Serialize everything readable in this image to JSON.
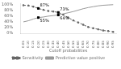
{
  "chart_data": {
    "type": "line",
    "x": [
      0.05,
      0.1,
      0.15,
      0.2,
      0.25,
      0.3,
      0.35,
      0.4,
      0.45,
      0.5,
      0.55,
      0.6,
      0.65,
      0.7,
      0.75,
      0.8,
      0.85,
      0.9,
      0.95
    ],
    "series": [
      {
        "name": "Sensitivity",
        "color": "#666666",
        "line_style": "dashed",
        "marker": "square",
        "values": [
          0.98,
          0.97,
          0.93,
          0.87,
          0.82,
          0.78,
          0.76,
          0.73,
          0.65,
          0.55,
          0.45,
          0.38,
          0.3,
          0.22,
          0.18,
          0.14,
          0.1,
          0.08,
          0.05
        ]
      },
      {
        "name": "Predictive value positive",
        "color": "#999999",
        "line_style": "solid",
        "marker": "none",
        "values": [
          0.4,
          0.44,
          0.5,
          0.55,
          0.57,
          0.6,
          0.62,
          0.64,
          0.68,
          0.72,
          0.76,
          0.81,
          0.86,
          0.9,
          0.93,
          0.96,
          0.98,
          0.99,
          1.0
        ]
      }
    ],
    "xlabel": "Cutoff probabilities",
    "xlim": [
      0.02,
      0.98
    ],
    "xticks": [
      0.05,
      {
        "value": 0.1,
        "label": "0.10"
      },
      0.15,
      {
        "value": 0.2,
        "label": "0.20"
      },
      0.25,
      {
        "value": 0.3,
        "label": "0.30"
      },
      0.35,
      {
        "value": 0.4,
        "label": "0.40"
      },
      0.45,
      {
        "value": 0.5,
        "label": "0.50"
      },
      0.55,
      {
        "value": 0.6,
        "label": "0.60"
      },
      0.65,
      {
        "value": 0.7,
        "label": "0.70"
      },
      0.75,
      {
        "value": 0.8,
        "label": "0.80"
      },
      0.85,
      {
        "value": 0.9,
        "label": "0.90"
      },
      0.95
    ],
    "ylim": [
      0.0,
      1.05
    ],
    "yticks": [
      {
        "value": 0.0,
        "label": "0%"
      },
      {
        "value": 0.2,
        "label": "20%"
      },
      {
        "value": 0.4,
        "label": "40%"
      },
      {
        "value": 0.6,
        "label": "60%"
      },
      {
        "value": 0.8,
        "label": "80%"
      },
      {
        "value": 1.0,
        "label": "100%"
      }
    ],
    "annotations": [
      {
        "text": "87%",
        "x": 0.2,
        "y": 0.87
      },
      {
        "text": "55%",
        "x": 0.2,
        "y": 0.55
      },
      {
        "text": "73%",
        "x": 0.4,
        "y": 0.73
      },
      {
        "text": "64%",
        "x": 0.4,
        "y": 0.64
      }
    ],
    "grid": false,
    "legend": "bottom"
  }
}
